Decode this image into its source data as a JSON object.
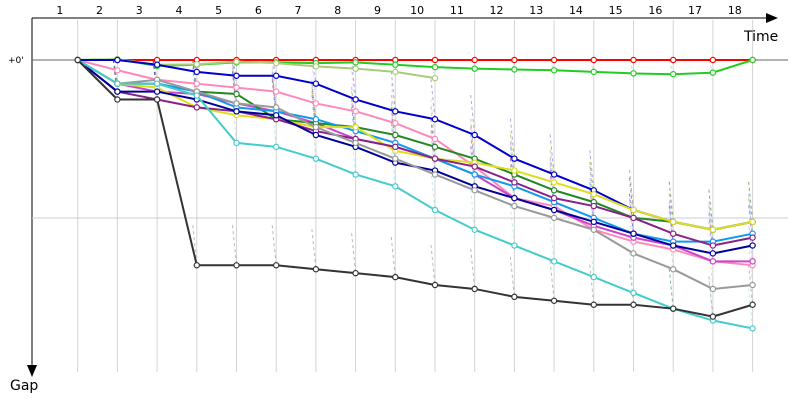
{
  "chart_data": {
    "type": "line",
    "title": "",
    "xlabel": "Time",
    "ylabel": "Gap",
    "zero_label": "+0'",
    "laps": [
      "1",
      "2",
      "3",
      "4",
      "5",
      "6",
      "7",
      "8",
      "9",
      "10",
      "11",
      "12",
      "13",
      "14",
      "15",
      "16",
      "17",
      "18"
    ],
    "ylim": [
      0,
      76
    ],
    "grid": true,
    "series": [
      {
        "color": "#ff0000",
        "values": [
          null,
          0,
          0,
          0,
          0,
          0,
          0,
          0,
          0,
          0,
          0,
          0,
          0,
          0,
          0,
          0,
          0,
          0,
          0
        ]
      },
      {
        "color": "#22cc22",
        "values": [
          null,
          0,
          -0.2,
          1.5,
          1.2,
          0.6,
          0.6,
          0.8,
          0.6,
          1.2,
          1.8,
          2.2,
          2.4,
          2.6,
          3.0,
          3.4,
          3.6,
          3.2,
          0
        ]
      },
      {
        "color": "#a8cc77",
        "values": [
          null,
          0,
          -0.2,
          1.2,
          1.1,
          0.4,
          0.8,
          1.6,
          2.2,
          3.0,
          4.6
        ]
      },
      {
        "color": "#ff88bb",
        "values": [
          null,
          0,
          2.6,
          5,
          6,
          7,
          8,
          11,
          13,
          16,
          20,
          27,
          35,
          37,
          43,
          46,
          48,
          51,
          52
        ]
      },
      {
        "color": "#cc44cc",
        "values": [
          null,
          0,
          6,
          8,
          8.6,
          11,
          13,
          16,
          20,
          22,
          25,
          29,
          35,
          38,
          42,
          45,
          47,
          51,
          51
        ]
      },
      {
        "color": "#0000cc",
        "values": [
          null,
          0,
          0,
          1.2,
          3,
          4,
          4,
          6,
          10,
          13,
          15,
          19,
          25,
          29,
          33,
          38,
          41,
          43,
          41
        ]
      },
      {
        "color": "#228822",
        "values": [
          null,
          0,
          6,
          6,
          8,
          8.6,
          15,
          16,
          17,
          19,
          22,
          25,
          29,
          33,
          36,
          40,
          41,
          43,
          41
        ]
      },
      {
        "color": "#1199ee",
        "values": [
          null,
          0,
          6,
          6,
          8,
          12,
          13,
          15,
          18,
          21,
          25,
          29,
          32,
          36,
          40,
          44,
          46,
          46,
          44
        ]
      },
      {
        "color": "#dddd22",
        "values": [
          null,
          0,
          6,
          7,
          12,
          14,
          15,
          17,
          17,
          23,
          25,
          26,
          28,
          31,
          34,
          38,
          41,
          43,
          41
        ]
      },
      {
        "color": "#882288",
        "values": [
          null,
          0,
          8,
          10,
          12,
          13,
          15,
          18,
          20,
          22,
          25,
          27,
          31,
          35,
          37,
          40,
          44,
          47,
          45
        ]
      },
      {
        "color": "#000099",
        "values": [
          null,
          0,
          8,
          8,
          10,
          13,
          14,
          19,
          22,
          26,
          28,
          32,
          35,
          38,
          41,
          44,
          47,
          49,
          47
        ]
      },
      {
        "color": "#999999",
        "values": [
          null,
          0,
          6,
          5,
          8,
          11,
          12,
          17,
          21,
          25,
          29,
          33,
          37,
          40,
          43,
          49,
          53,
          58,
          57
        ]
      },
      {
        "color": "#44cccc",
        "values": [
          null,
          0,
          6,
          6,
          9,
          21,
          22,
          25,
          29,
          32,
          38,
          43,
          47,
          51,
          55,
          59,
          63,
          66,
          68
        ]
      },
      {
        "color": "#333333",
        "values": [
          null,
          0,
          10,
          10,
          52,
          52,
          52,
          53,
          54,
          55,
          57,
          58,
          60,
          61,
          62,
          62,
          63,
          65,
          62
        ]
      }
    ]
  }
}
